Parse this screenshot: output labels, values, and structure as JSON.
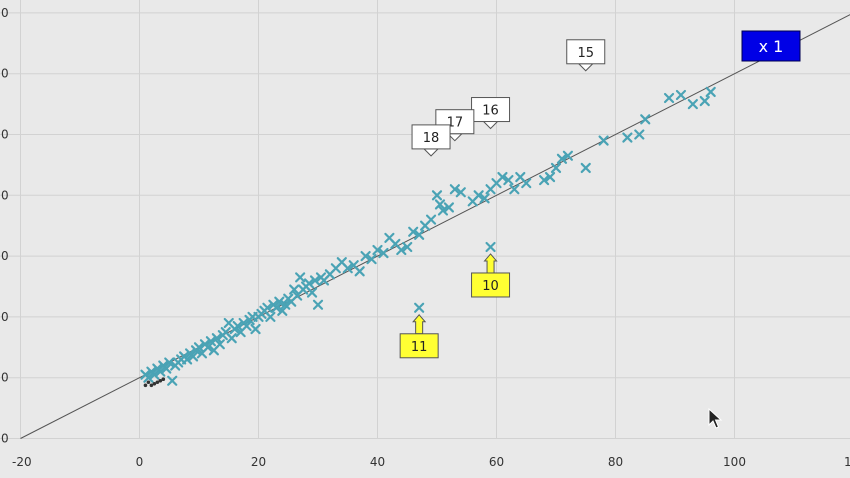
{
  "chart_data": {
    "type": "scatter",
    "title": "",
    "xlabel": "",
    "ylabel": "",
    "xlim": [
      -20,
      120
    ],
    "ylim": [
      0,
      140
    ],
    "x_ticks": [
      "-20",
      "0",
      "20",
      "40",
      "60",
      "80",
      "100",
      "1"
    ],
    "y_ticks": [
      "0",
      "0",
      "0",
      "0",
      "0",
      "0",
      "0",
      "0"
    ],
    "grid": true,
    "series": [
      {
        "marker": "x",
        "color": "#4aa3b5",
        "points": [
          [
            1,
            21
          ],
          [
            1.5,
            20
          ],
          [
            2,
            22
          ],
          [
            2.5,
            21
          ],
          [
            3,
            23
          ],
          [
            3.5,
            22
          ],
          [
            4,
            24
          ],
          [
            4.5,
            23
          ],
          [
            5,
            25
          ],
          [
            5.5,
            19
          ],
          [
            6,
            24
          ],
          [
            6.5,
            25
          ],
          [
            7,
            26
          ],
          [
            7.5,
            27
          ],
          [
            8,
            26
          ],
          [
            8.5,
            28
          ],
          [
            9,
            27
          ],
          [
            9.5,
            29
          ],
          [
            10,
            30
          ],
          [
            10.5,
            28
          ],
          [
            11,
            31
          ],
          [
            11.5,
            30
          ],
          [
            12,
            32
          ],
          [
            12.5,
            29
          ],
          [
            13,
            33
          ],
          [
            13.5,
            31
          ],
          [
            14,
            34
          ],
          [
            14.5,
            35
          ],
          [
            15,
            38
          ],
          [
            15.5,
            33
          ],
          [
            16,
            36
          ],
          [
            16.5,
            37
          ],
          [
            17,
            35
          ],
          [
            17.5,
            38
          ],
          [
            18,
            37
          ],
          [
            18.5,
            39
          ],
          [
            19,
            40
          ],
          [
            19.5,
            36
          ],
          [
            20,
            40
          ],
          [
            20.5,
            41
          ],
          [
            21,
            42
          ],
          [
            21.5,
            43
          ],
          [
            22,
            40
          ],
          [
            22.5,
            44
          ],
          [
            23,
            43
          ],
          [
            23.5,
            45
          ],
          [
            24,
            42
          ],
          [
            24.5,
            44
          ],
          [
            25,
            46
          ],
          [
            25.5,
            45
          ],
          [
            26,
            49
          ],
          [
            26.5,
            47
          ],
          [
            27,
            53
          ],
          [
            27.5,
            49
          ],
          [
            28,
            50
          ],
          [
            28.5,
            51
          ],
          [
            29,
            48
          ],
          [
            29.5,
            52
          ],
          [
            30,
            44
          ],
          [
            30.5,
            53
          ],
          [
            31,
            52
          ],
          [
            32,
            54
          ],
          [
            33,
            56
          ],
          [
            34,
            58
          ],
          [
            35,
            56
          ],
          [
            36,
            57
          ],
          [
            37,
            55
          ],
          [
            38,
            60
          ],
          [
            39,
            59
          ],
          [
            40,
            62
          ],
          [
            41,
            61
          ],
          [
            42,
            66
          ],
          [
            43,
            64
          ],
          [
            44,
            62
          ],
          [
            45,
            63
          ],
          [
            46,
            68
          ],
          [
            47,
            67
          ],
          [
            48,
            70
          ],
          [
            49,
            72
          ],
          [
            50,
            80
          ],
          [
            50.5,
            77
          ],
          [
            51,
            75
          ],
          [
            52,
            76
          ],
          [
            53,
            82
          ],
          [
            54,
            81
          ],
          [
            56,
            78
          ],
          [
            57,
            80
          ],
          [
            58,
            79
          ],
          [
            59,
            82
          ],
          [
            60,
            84
          ],
          [
            61,
            86
          ],
          [
            62,
            85
          ],
          [
            63,
            82
          ],
          [
            64,
            86
          ],
          [
            65,
            84
          ],
          [
            68,
            85
          ],
          [
            69,
            86
          ],
          [
            70,
            89
          ],
          [
            71,
            92
          ],
          [
            72,
            93
          ],
          [
            75,
            89
          ],
          [
            78,
            98
          ],
          [
            82,
            99
          ],
          [
            84,
            100
          ],
          [
            85,
            105
          ],
          [
            89,
            112
          ],
          [
            91,
            113
          ],
          [
            93,
            110
          ],
          [
            95,
            111
          ],
          [
            96,
            114
          ],
          [
            47,
            43
          ],
          [
            59,
            63
          ]
        ]
      }
    ],
    "black_points": [
      [
        1,
        17.5
      ],
      [
        1.5,
        18.5
      ],
      [
        2,
        17.5
      ],
      [
        2.5,
        18
      ],
      [
        3,
        18.5
      ],
      [
        3.5,
        19
      ],
      [
        4,
        19.5
      ]
    ],
    "trendline": {
      "from": [
        -20,
        0
      ],
      "to": [
        120,
        140
      ]
    },
    "annotations": [
      {
        "label": "10",
        "x": 59,
        "y": 63,
        "style": "yellow",
        "direction": "below"
      },
      {
        "label": "11",
        "x": 47,
        "y": 43,
        "style": "yellow",
        "direction": "below"
      },
      {
        "label": "15",
        "x": 75,
        "y": 118,
        "style": "white",
        "direction": "above"
      },
      {
        "label": "16",
        "x": 59,
        "y": 99,
        "style": "white",
        "direction": "above"
      },
      {
        "label": "17",
        "x": 53,
        "y": 95,
        "style": "white",
        "direction": "above"
      },
      {
        "label": "18",
        "x": 49,
        "y": 90,
        "style": "white",
        "direction": "above"
      }
    ],
    "zoom_label": "x 1",
    "zoom_color": "#0000e6"
  }
}
